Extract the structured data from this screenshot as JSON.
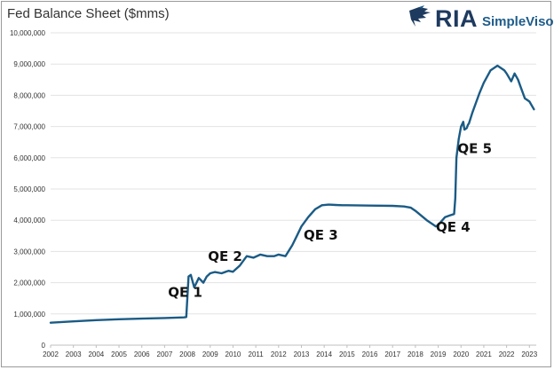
{
  "colors": {
    "line": "#1b5b85",
    "grid": "#e3e3e3",
    "axis": "#bfbfbf",
    "logo": "#1e3a5f",
    "logo_accent": "#1e5c8a"
  },
  "logo": {
    "icon": "eagle-icon",
    "name": "RIA",
    "sub": "SimpleVisor"
  },
  "chart_data": {
    "type": "line",
    "title": "Fed Balance Sheet ($mms)",
    "xlabel": "",
    "ylabel": "",
    "xlim": [
      2002.0,
      2023.3
    ],
    "ylim": [
      0,
      10000000
    ],
    "grid": true,
    "yticks": [
      0,
      1000000,
      2000000,
      3000000,
      4000000,
      5000000,
      6000000,
      7000000,
      8000000,
      9000000,
      10000000
    ],
    "ytick_labels": [
      "0",
      "1,000,000",
      "2,000,000",
      "3,000,000",
      "4,000,000",
      "5,000,000",
      "6,000,000",
      "7,000,000",
      "8,000,000",
      "9,000,000",
      "10,000,000"
    ],
    "xticks": [
      2002,
      2003,
      2004,
      2005,
      2006,
      2007,
      2008,
      2009,
      2010,
      2011,
      2012,
      2013,
      2014,
      2015,
      2016,
      2017,
      2018,
      2019,
      2020,
      2021,
      2022,
      2023
    ],
    "xtick_labels": [
      "2002",
      "2003",
      "2004",
      "2005",
      "2006",
      "2007",
      "2008",
      "2009",
      "2010",
      "2011",
      "2012",
      "2013",
      "2014",
      "2015",
      "2016",
      "2017",
      "2018",
      "2019",
      "2020",
      "2021",
      "2022",
      "2023"
    ],
    "series": [
      {
        "x": [
          2002.0,
          2003.0,
          2004.0,
          2005.0,
          2006.0,
          2007.0,
          2007.85,
          2007.95,
          2008.05,
          2008.15,
          2008.3,
          2008.5,
          2008.7,
          2008.85,
          2009.0,
          2009.2,
          2009.5,
          2009.8,
          2010.0,
          2010.3,
          2010.6,
          2010.9,
          2011.2,
          2011.5,
          2011.8,
          2012.0,
          2012.3,
          2012.6,
          2012.8,
          2013.0,
          2013.3,
          2013.6,
          2013.9,
          2014.2,
          2014.5,
          2014.8,
          2015.0,
          2016.0,
          2017.0,
          2017.5,
          2017.8,
          2018.0,
          2018.5,
          2018.9,
          2019.0,
          2019.3,
          2019.5,
          2019.7,
          2019.75,
          2019.8,
          2019.9,
          2020.0,
          2020.1,
          2020.15,
          2020.25,
          2020.3,
          2020.35,
          2020.5,
          2020.8,
          2021.0,
          2021.3,
          2021.6,
          2021.9,
          2022.0,
          2022.2,
          2022.35,
          2022.5,
          2022.6,
          2022.8,
          2023.0,
          2023.2
        ],
        "y": [
          720000,
          760000,
          800000,
          830000,
          850000,
          870000,
          890000,
          900000,
          2200000,
          2250000,
          1850000,
          2150000,
          2000000,
          2200000,
          2300000,
          2340000,
          2300000,
          2380000,
          2350000,
          2550000,
          2850000,
          2800000,
          2900000,
          2850000,
          2850000,
          2900000,
          2850000,
          3200000,
          3500000,
          3800000,
          4100000,
          4350000,
          4480000,
          4500000,
          4490000,
          4480000,
          4480000,
          4470000,
          4460000,
          4440000,
          4400000,
          4300000,
          4000000,
          3800000,
          3850000,
          4100000,
          4150000,
          4200000,
          4700000,
          6000000,
          6600000,
          7000000,
          7150000,
          6900000,
          6950000,
          7050000,
          7100000,
          7450000,
          8050000,
          8400000,
          8800000,
          8950000,
          8800000,
          8700000,
          8450000,
          8700000,
          8500000,
          8300000,
          7900000,
          7800000,
          7550000
        ]
      }
    ],
    "annotations": [
      {
        "text": "QE 1",
        "x": 2007.15,
        "y": 1550000
      },
      {
        "text": "QE 2",
        "x": 2008.9,
        "y": 2700000
      },
      {
        "text": "QE 3",
        "x": 2013.1,
        "y": 3380000
      },
      {
        "text": "QE 4",
        "x": 2018.9,
        "y": 3630000
      },
      {
        "text": "QE 5",
        "x": 2019.85,
        "y": 6150000
      }
    ]
  }
}
